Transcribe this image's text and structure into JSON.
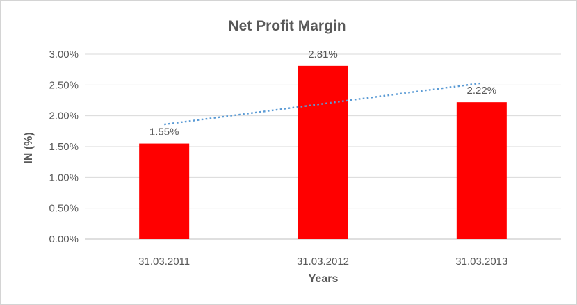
{
  "window": {
    "background": "#ffffff",
    "border_color": "#d4d4d4"
  },
  "chart_data": {
    "type": "bar",
    "title": "Net Profit Margin",
    "xlabel": "Years",
    "ylabel": "IN (%)",
    "categories": [
      "31.03.2011",
      "31.03.2012",
      "31.03.2013"
    ],
    "values": [
      1.55,
      2.81,
      2.22
    ],
    "data_labels": [
      "1.55%",
      "2.81%",
      "2.22%"
    ],
    "ylim": [
      0,
      3.0
    ],
    "y_tick_values": [
      0,
      0.5,
      1.0,
      1.5,
      2.0,
      2.5,
      3.0
    ],
    "y_tick_labels": [
      "0.00%",
      "0.50%",
      "1.00%",
      "1.50%",
      "2.00%",
      "2.50%",
      "3.00%"
    ],
    "grid": true,
    "legend": "none",
    "bar_color": "#FF0000",
    "trendline": {
      "type": "linear",
      "style": "dotted",
      "color": "#5B9BD5",
      "start_value": 1.86,
      "end_value": 2.53
    },
    "text_color": "#595959",
    "gridline_color": "#D9D9D9",
    "axis_line_color": "#BFBFBF"
  }
}
